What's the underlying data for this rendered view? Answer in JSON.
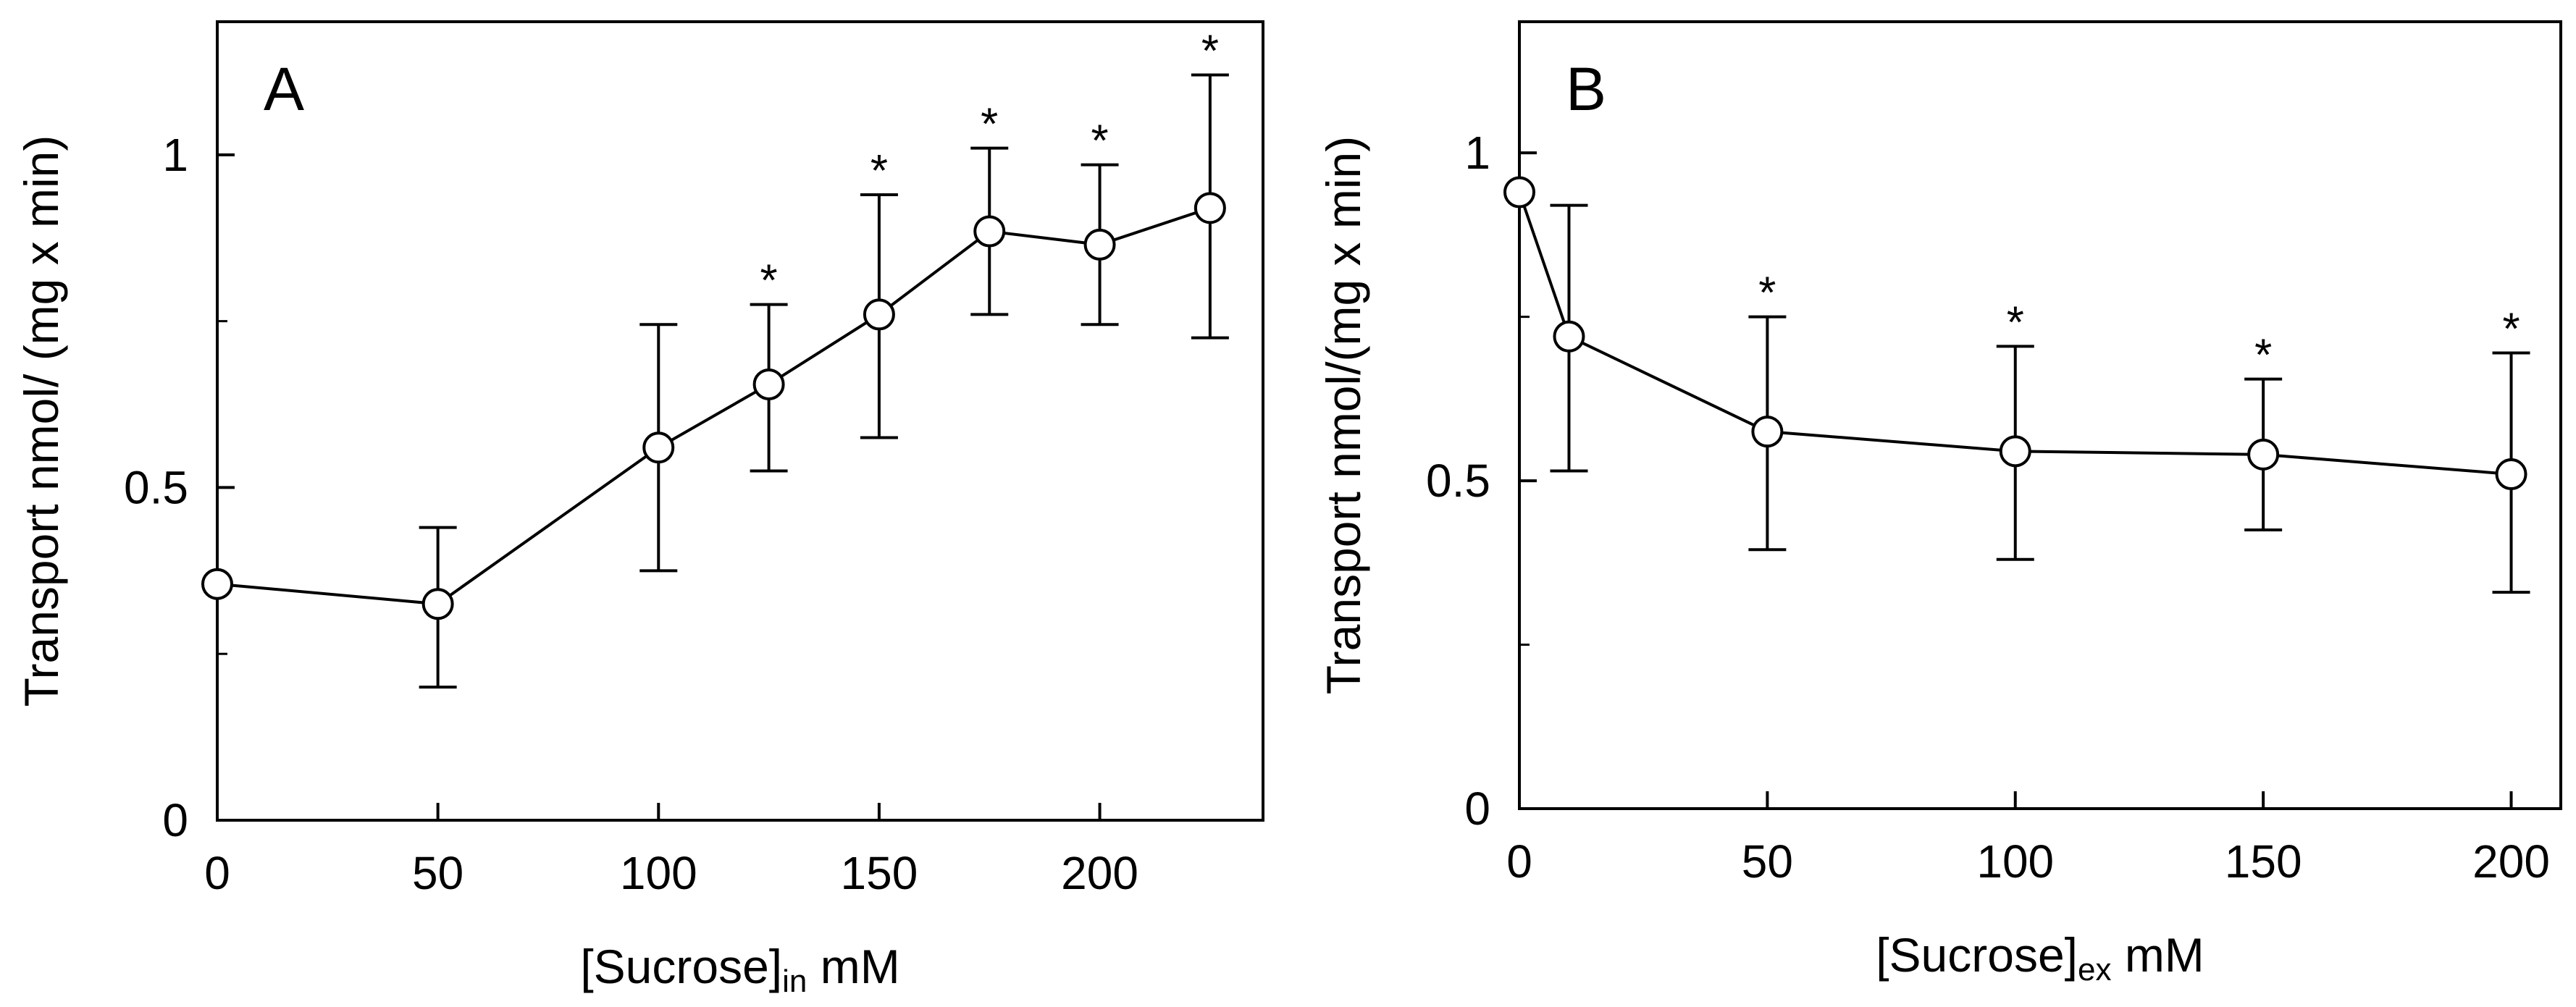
{
  "chart_data": [
    {
      "type": "line",
      "panel_label": "A",
      "xlabel": {
        "prefix": "[Sucrose]",
        "subscript": "in",
        "suffix": " mM"
      },
      "ylabel": "Transport nmol/ (mg x min)",
      "xlim": [
        0,
        237
      ],
      "ylim": [
        0,
        1.2
      ],
      "xticks": [
        0,
        50,
        100,
        150,
        200
      ],
      "yticks": [
        0,
        0.5,
        1
      ],
      "ytick_labels": [
        "0",
        "0.5",
        "1"
      ],
      "marker": "open-circle",
      "significance_marker": "*",
      "series": [
        {
          "x": [
            0,
            50,
            100,
            125,
            150,
            175,
            200,
            225
          ],
          "y": [
            0.355,
            0.325,
            0.56,
            0.655,
            0.76,
            0.885,
            0.865,
            0.92
          ],
          "yerr_low": [
            0,
            0.2,
            0.375,
            0.525,
            0.575,
            0.76,
            0.745,
            0.725
          ],
          "yerr_high": [
            0,
            0.44,
            0.745,
            0.775,
            0.94,
            1.01,
            0.985,
            1.12
          ],
          "significant": [
            false,
            false,
            false,
            true,
            true,
            true,
            true,
            true
          ]
        }
      ]
    },
    {
      "type": "line",
      "panel_label": "B",
      "xlabel": {
        "prefix": "[Sucrose]",
        "subscript": "ex",
        "suffix": " mM"
      },
      "ylabel": "Transport nmol/(mg x min)",
      "xlim": [
        0,
        210
      ],
      "ylim": [
        0,
        1.2
      ],
      "xticks": [
        0,
        50,
        100,
        150,
        200
      ],
      "yticks": [
        0,
        0.5,
        1
      ],
      "ytick_labels": [
        "0",
        "0.5",
        "1"
      ],
      "marker": "open-circle",
      "significance_marker": "*",
      "series": [
        {
          "x": [
            0,
            10,
            50,
            100,
            150,
            200
          ],
          "y": [
            0.94,
            0.72,
            0.575,
            0.545,
            0.54,
            0.51
          ],
          "yerr_low": [
            0,
            0.515,
            0.395,
            0.38,
            0.425,
            0.33
          ],
          "yerr_high": [
            0,
            0.92,
            0.75,
            0.705,
            0.655,
            0.695
          ],
          "significant": [
            false,
            false,
            true,
            true,
            true,
            true
          ]
        }
      ]
    }
  ]
}
